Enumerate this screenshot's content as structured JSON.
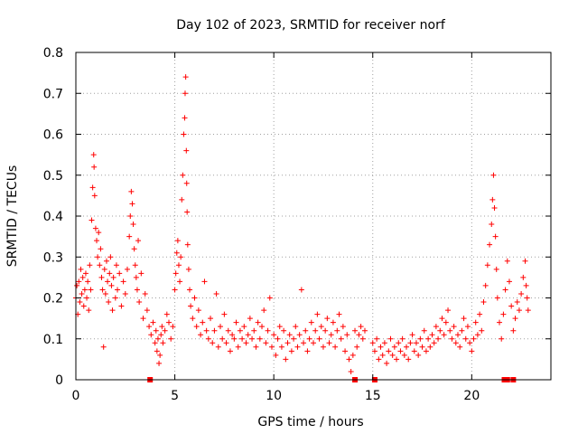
{
  "chart_data": {
    "type": "scatter",
    "title": "Day 102 of 2023, SRMTID for receiver norf",
    "xlabel": "GPS time / hours",
    "ylabel": "SRMTID / TECUs",
    "xlim": [
      0,
      24
    ],
    "ylim": [
      0,
      0.8
    ],
    "xticks": [
      0,
      5,
      10,
      15,
      20
    ],
    "yticks": [
      0,
      0.1,
      0.2,
      0.3,
      0.4,
      0.5,
      0.6,
      0.7,
      0.8
    ],
    "ytick_labels": [
      "0",
      "0.1",
      "0.2",
      "0.3",
      "0.4",
      "0.5",
      "0.6",
      "0.7",
      "0.8"
    ],
    "grid": true,
    "marker_color": "#ff0000",
    "marker": "+",
    "series": [
      {
        "name": "SRMTID",
        "points": [
          [
            0.0,
            0.2
          ],
          [
            0.05,
            0.23
          ],
          [
            0.1,
            0.16
          ],
          [
            0.15,
            0.24
          ],
          [
            0.2,
            0.19
          ],
          [
            0.25,
            0.27
          ],
          [
            0.3,
            0.21
          ],
          [
            0.35,
            0.25
          ],
          [
            0.4,
            0.18
          ],
          [
            0.45,
            0.22
          ],
          [
            0.5,
            0.26
          ],
          [
            0.55,
            0.2
          ],
          [
            0.6,
            0.24
          ],
          [
            0.65,
            0.17
          ],
          [
            0.7,
            0.28
          ],
          [
            0.75,
            0.22
          ],
          [
            0.8,
            0.39
          ],
          [
            0.85,
            0.47
          ],
          [
            0.9,
            0.55
          ],
          [
            0.92,
            0.52
          ],
          [
            0.95,
            0.45
          ],
          [
            1.0,
            0.37
          ],
          [
            1.05,
            0.34
          ],
          [
            1.1,
            0.3
          ],
          [
            1.15,
            0.36
          ],
          [
            1.2,
            0.28
          ],
          [
            1.25,
            0.32
          ],
          [
            1.3,
            0.25
          ],
          [
            1.35,
            0.22
          ],
          [
            1.4,
            0.08
          ],
          [
            1.45,
            0.27
          ],
          [
            1.5,
            0.21
          ],
          [
            1.55,
            0.29
          ],
          [
            1.6,
            0.24
          ],
          [
            1.65,
            0.19
          ],
          [
            1.7,
            0.26
          ],
          [
            1.75,
            0.3
          ],
          [
            1.8,
            0.23
          ],
          [
            1.85,
            0.17
          ],
          [
            1.9,
            0.25
          ],
          [
            2.0,
            0.2
          ],
          [
            2.05,
            0.28
          ],
          [
            2.1,
            0.22
          ],
          [
            2.2,
            0.26
          ],
          [
            2.3,
            0.18
          ],
          [
            2.4,
            0.24
          ],
          [
            2.5,
            0.21
          ],
          [
            2.6,
            0.27
          ],
          [
            2.7,
            0.35
          ],
          [
            2.75,
            0.4
          ],
          [
            2.8,
            0.46
          ],
          [
            2.85,
            0.43
          ],
          [
            2.9,
            0.38
          ],
          [
            2.95,
            0.32
          ],
          [
            3.0,
            0.28
          ],
          [
            3.05,
            0.25
          ],
          [
            3.1,
            0.22
          ],
          [
            3.15,
            0.34
          ],
          [
            3.2,
            0.19
          ],
          [
            3.3,
            0.26
          ],
          [
            3.4,
            0.15
          ],
          [
            3.5,
            0.21
          ],
          [
            3.6,
            0.17
          ],
          [
            3.7,
            0.13
          ],
          [
            3.8,
            0.11
          ],
          [
            3.9,
            0.14
          ],
          [
            4.0,
            0.09
          ],
          [
            4.05,
            0.12
          ],
          [
            4.1,
            0.07
          ],
          [
            4.15,
            0.1
          ],
          [
            4.2,
            0.04
          ],
          [
            4.25,
            0.06
          ],
          [
            4.3,
            0.11
          ],
          [
            4.35,
            0.13
          ],
          [
            4.4,
            0.09
          ],
          [
            4.5,
            0.12
          ],
          [
            4.6,
            0.16
          ],
          [
            4.7,
            0.14
          ],
          [
            4.8,
            0.1
          ],
          [
            4.9,
            0.13
          ],
          [
            5.0,
            0.22
          ],
          [
            5.05,
            0.26
          ],
          [
            5.1,
            0.31
          ],
          [
            5.15,
            0.34
          ],
          [
            5.2,
            0.28
          ],
          [
            5.25,
            0.24
          ],
          [
            5.3,
            0.3
          ],
          [
            5.35,
            0.44
          ],
          [
            5.4,
            0.5
          ],
          [
            5.45,
            0.6
          ],
          [
            5.5,
            0.64
          ],
          [
            5.52,
            0.7
          ],
          [
            5.55,
            0.74
          ],
          [
            5.58,
            0.56
          ],
          [
            5.6,
            0.48
          ],
          [
            5.62,
            0.41
          ],
          [
            5.65,
            0.33
          ],
          [
            5.7,
            0.27
          ],
          [
            5.75,
            0.22
          ],
          [
            5.8,
            0.18
          ],
          [
            5.9,
            0.15
          ],
          [
            6.0,
            0.2
          ],
          [
            6.1,
            0.13
          ],
          [
            6.2,
            0.17
          ],
          [
            6.3,
            0.11
          ],
          [
            6.4,
            0.14
          ],
          [
            6.5,
            0.24
          ],
          [
            6.6,
            0.12
          ],
          [
            6.7,
            0.1
          ],
          [
            6.8,
            0.15
          ],
          [
            6.9,
            0.09
          ],
          [
            7.0,
            0.12
          ],
          [
            7.1,
            0.21
          ],
          [
            7.2,
            0.08
          ],
          [
            7.3,
            0.13
          ],
          [
            7.4,
            0.1
          ],
          [
            7.5,
            0.16
          ],
          [
            7.6,
            0.09
          ],
          [
            7.7,
            0.12
          ],
          [
            7.8,
            0.07
          ],
          [
            7.9,
            0.11
          ],
          [
            8.0,
            0.1
          ],
          [
            8.1,
            0.14
          ],
          [
            8.2,
            0.08
          ],
          [
            8.3,
            0.12
          ],
          [
            8.4,
            0.1
          ],
          [
            8.5,
            0.13
          ],
          [
            8.6,
            0.09
          ],
          [
            8.7,
            0.11
          ],
          [
            8.8,
            0.15
          ],
          [
            8.9,
            0.1
          ],
          [
            9.0,
            0.12
          ],
          [
            9.1,
            0.08
          ],
          [
            9.2,
            0.14
          ],
          [
            9.3,
            0.1
          ],
          [
            9.4,
            0.13
          ],
          [
            9.5,
            0.17
          ],
          [
            9.6,
            0.09
          ],
          [
            9.7,
            0.12
          ],
          [
            9.8,
            0.2
          ],
          [
            9.9,
            0.08
          ],
          [
            10.0,
            0.11
          ],
          [
            10.1,
            0.06
          ],
          [
            10.2,
            0.1
          ],
          [
            10.3,
            0.13
          ],
          [
            10.4,
            0.08
          ],
          [
            10.5,
            0.12
          ],
          [
            10.6,
            0.05
          ],
          [
            10.7,
            0.09
          ],
          [
            10.8,
            0.11
          ],
          [
            10.9,
            0.07
          ],
          [
            11.0,
            0.1
          ],
          [
            11.1,
            0.13
          ],
          [
            11.2,
            0.08
          ],
          [
            11.3,
            0.11
          ],
          [
            11.4,
            0.22
          ],
          [
            11.5,
            0.09
          ],
          [
            11.6,
            0.12
          ],
          [
            11.7,
            0.07
          ],
          [
            11.8,
            0.1
          ],
          [
            11.9,
            0.14
          ],
          [
            12.0,
            0.09
          ],
          [
            12.1,
            0.12
          ],
          [
            12.2,
            0.16
          ],
          [
            12.3,
            0.1
          ],
          [
            12.4,
            0.13
          ],
          [
            12.5,
            0.08
          ],
          [
            12.6,
            0.12
          ],
          [
            12.7,
            0.15
          ],
          [
            12.8,
            0.09
          ],
          [
            12.9,
            0.11
          ],
          [
            13.0,
            0.14
          ],
          [
            13.1,
            0.08
          ],
          [
            13.2,
            0.12
          ],
          [
            13.3,
            0.16
          ],
          [
            13.4,
            0.1
          ],
          [
            13.5,
            0.13
          ],
          [
            13.6,
            0.07
          ],
          [
            13.7,
            0.11
          ],
          [
            13.8,
            0.05
          ],
          [
            13.9,
            0.02
          ],
          [
            14.0,
            0.06
          ],
          [
            14.1,
            0.12
          ],
          [
            14.2,
            0.08
          ],
          [
            14.3,
            0.11
          ],
          [
            14.4,
            0.13
          ],
          [
            14.5,
            0.1
          ],
          [
            14.6,
            0.12
          ],
          [
            15.0,
            0.09
          ],
          [
            15.1,
            0.07
          ],
          [
            15.2,
            0.1
          ],
          [
            15.3,
            0.05
          ],
          [
            15.4,
            0.08
          ],
          [
            15.5,
            0.06
          ],
          [
            15.6,
            0.09
          ],
          [
            15.7,
            0.04
          ],
          [
            15.8,
            0.07
          ],
          [
            15.9,
            0.1
          ],
          [
            16.0,
            0.06
          ],
          [
            16.1,
            0.08
          ],
          [
            16.2,
            0.05
          ],
          [
            16.3,
            0.09
          ],
          [
            16.4,
            0.07
          ],
          [
            16.5,
            0.1
          ],
          [
            16.6,
            0.06
          ],
          [
            16.7,
            0.08
          ],
          [
            16.8,
            0.05
          ],
          [
            16.9,
            0.09
          ],
          [
            17.0,
            0.11
          ],
          [
            17.1,
            0.07
          ],
          [
            17.2,
            0.09
          ],
          [
            17.3,
            0.06
          ],
          [
            17.4,
            0.1
          ],
          [
            17.5,
            0.08
          ],
          [
            17.6,
            0.12
          ],
          [
            17.7,
            0.07
          ],
          [
            17.8,
            0.1
          ],
          [
            17.9,
            0.08
          ],
          [
            18.0,
            0.11
          ],
          [
            18.1,
            0.09
          ],
          [
            18.2,
            0.13
          ],
          [
            18.3,
            0.1
          ],
          [
            18.4,
            0.12
          ],
          [
            18.5,
            0.15
          ],
          [
            18.6,
            0.11
          ],
          [
            18.7,
            0.14
          ],
          [
            18.8,
            0.17
          ],
          [
            18.9,
            0.12
          ],
          [
            19.0,
            0.1
          ],
          [
            19.1,
            0.13
          ],
          [
            19.2,
            0.09
          ],
          [
            19.3,
            0.11
          ],
          [
            19.4,
            0.08
          ],
          [
            19.5,
            0.12
          ],
          [
            19.6,
            0.15
          ],
          [
            19.7,
            0.1
          ],
          [
            19.8,
            0.13
          ],
          [
            19.9,
            0.09
          ],
          [
            20.0,
            0.07
          ],
          [
            20.1,
            0.1
          ],
          [
            20.2,
            0.14
          ],
          [
            20.3,
            0.11
          ],
          [
            20.4,
            0.16
          ],
          [
            20.5,
            0.12
          ],
          [
            20.6,
            0.19
          ],
          [
            20.7,
            0.23
          ],
          [
            20.8,
            0.28
          ],
          [
            20.9,
            0.33
          ],
          [
            21.0,
            0.38
          ],
          [
            21.05,
            0.44
          ],
          [
            21.1,
            0.5
          ],
          [
            21.15,
            0.42
          ],
          [
            21.2,
            0.35
          ],
          [
            21.25,
            0.27
          ],
          [
            21.3,
            0.2
          ],
          [
            21.4,
            0.14
          ],
          [
            21.5,
            0.1
          ],
          [
            21.6,
            0.16
          ],
          [
            21.7,
            0.22
          ],
          [
            21.8,
            0.29
          ],
          [
            21.9,
            0.24
          ],
          [
            22.0,
            0.18
          ],
          [
            22.1,
            0.12
          ],
          [
            22.2,
            0.15
          ],
          [
            22.3,
            0.19
          ],
          [
            22.4,
            0.17
          ],
          [
            22.5,
            0.21
          ],
          [
            22.6,
            0.25
          ],
          [
            22.7,
            0.29
          ],
          [
            22.75,
            0.23
          ],
          [
            22.8,
            0.2
          ],
          [
            22.85,
            0.17
          ]
        ]
      },
      {
        "name": "zero-level",
        "marker": "square",
        "points": [
          [
            3.75,
            0
          ],
          [
            14.1,
            0
          ],
          [
            15.1,
            0
          ],
          [
            21.65,
            0
          ],
          [
            21.8,
            0
          ],
          [
            22.1,
            0
          ]
        ]
      }
    ]
  }
}
